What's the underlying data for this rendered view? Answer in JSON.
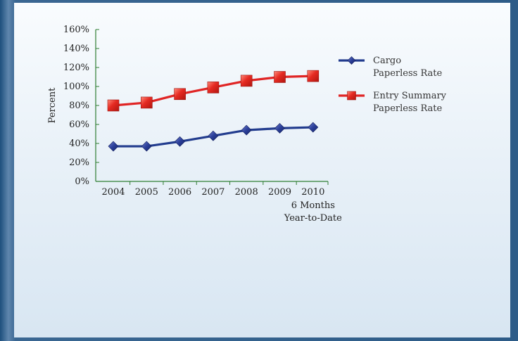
{
  "chart_data": {
    "type": "line",
    "categories": [
      "2004",
      "2005",
      "2006",
      "2007",
      "2008",
      "2009",
      "2010"
    ],
    "category_sublabel": [
      "6 Months",
      "Year-to-Date"
    ],
    "ylabel": "Percent",
    "ylim": [
      0,
      160
    ],
    "yticks": [
      "0%",
      "20%",
      "40%",
      "60%",
      "80%",
      "100%",
      "120%",
      "140%",
      "160%"
    ],
    "grid": false,
    "legend_position": "right",
    "series": [
      {
        "name_lines": [
          "Cargo",
          "Paperless Rate"
        ],
        "color": "#223c8e",
        "marker": "diamond",
        "values": [
          37,
          37,
          42,
          48,
          54,
          56,
          57
        ]
      },
      {
        "name_lines": [
          "Entry Summary",
          "Paperless Rate"
        ],
        "color": "#e02424",
        "marker": "square",
        "values": [
          80,
          83,
          92,
          99,
          106,
          110,
          111
        ]
      }
    ]
  }
}
